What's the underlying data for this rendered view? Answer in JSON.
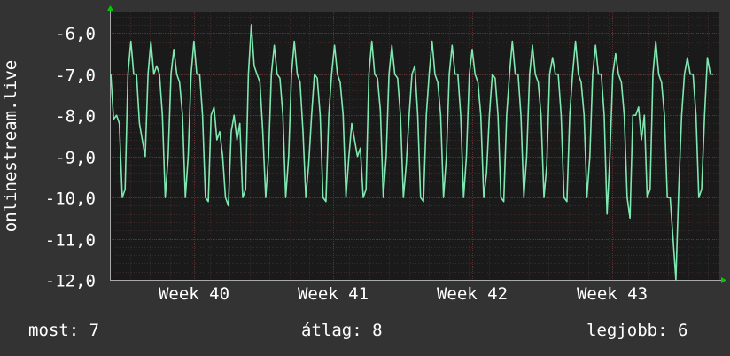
{
  "chart_data": {
    "type": "line",
    "ylabel": "onlinestream.live",
    "ylim": [
      -12,
      -5.5
    ],
    "yticks": [
      "-6,0",
      "-7,0",
      "-8,0",
      "-9,0",
      "-10,0",
      "-11,0",
      "-12,0"
    ],
    "ytick_values": [
      -6,
      -7,
      -8,
      -9,
      -10,
      -11,
      -12
    ],
    "xticks": [
      "Week 40",
      "Week 41",
      "Week 42",
      "Week 43"
    ],
    "grid": true,
    "series": [
      {
        "color": "#7ee8b0",
        "values": [
          -7.0,
          -8.1,
          -8.0,
          -8.2,
          -10.0,
          -9.8,
          -7.0,
          -6.2,
          -7.0,
          -7.0,
          -8.2,
          -8.6,
          -9.0,
          -7.0,
          -6.2,
          -7.0,
          -6.8,
          -7.0,
          -8.0,
          -10.0,
          -9.0,
          -7.0,
          -6.4,
          -7.0,
          -7.2,
          -8.0,
          -10.0,
          -9.0,
          -7.0,
          -6.2,
          -7.0,
          -7.0,
          -8.0,
          -10.0,
          -10.1,
          -8.0,
          -7.8,
          -8.6,
          -8.4,
          -9.0,
          -10.0,
          -10.2,
          -8.4,
          -8.0,
          -8.6,
          -8.2,
          -10.0,
          -9.8,
          -7.0,
          -5.8,
          -6.8,
          -7.0,
          -7.2,
          -8.4,
          -10.0,
          -9.0,
          -7.0,
          -6.3,
          -7.0,
          -7.1,
          -8.0,
          -10.0,
          -9.0,
          -7.0,
          -6.2,
          -7.0,
          -7.2,
          -8.4,
          -10.0,
          -9.2,
          -8.0,
          -7.0,
          -7.1,
          -8.0,
          -10.0,
          -10.1,
          -8.0,
          -7.0,
          -6.3,
          -7.0,
          -7.2,
          -8.0,
          -10.0,
          -9.0,
          -8.2,
          -8.6,
          -9.0,
          -8.8,
          -10.0,
          -9.8,
          -7.0,
          -6.2,
          -7.0,
          -7.1,
          -7.9,
          -10.0,
          -9.0,
          -7.0,
          -6.3,
          -7.0,
          -7.1,
          -8.0,
          -10.0,
          -9.2,
          -8.0,
          -7.0,
          -6.8,
          -8.0,
          -10.0,
          -10.1,
          -8.0,
          -7.0,
          -6.2,
          -7.0,
          -7.2,
          -8.0,
          -10.0,
          -9.0,
          -7.0,
          -6.3,
          -7.0,
          -7.0,
          -8.0,
          -10.0,
          -9.0,
          -7.0,
          -6.4,
          -7.0,
          -7.2,
          -8.0,
          -10.0,
          -9.4,
          -8.0,
          -7.0,
          -7.1,
          -8.0,
          -10.0,
          -10.1,
          -8.0,
          -7.0,
          -6.2,
          -7.0,
          -7.0,
          -8.0,
          -10.0,
          -9.0,
          -7.0,
          -6.3,
          -7.0,
          -7.2,
          -8.0,
          -10.0,
          -9.2,
          -7.0,
          -6.6,
          -7.0,
          -7.0,
          -8.0,
          -10.0,
          -10.1,
          -8.0,
          -7.0,
          -6.2,
          -7.0,
          -7.2,
          -8.0,
          -10.0,
          -9.0,
          -7.0,
          -6.3,
          -7.0,
          -7.0,
          -8.0,
          -10.4,
          -9.0,
          -7.0,
          -6.5,
          -7.0,
          -7.2,
          -8.0,
          -10.0,
          -10.5,
          -8.0,
          -8.0,
          -7.8,
          -8.6,
          -8.0,
          -10.0,
          -9.8,
          -7.0,
          -6.2,
          -7.0,
          -7.2,
          -8.0,
          -10.0,
          -10.0,
          -11.0,
          -12.0,
          -9.8,
          -8.0,
          -7.0,
          -6.6,
          -7.0,
          -7.0,
          -8.0,
          -10.0,
          -9.8,
          -8.0,
          -6.6,
          -7.0,
          -7.0
        ]
      }
    ]
  },
  "footer": {
    "current_label": "most:",
    "current_value": "7",
    "average_label": "átlag:",
    "average_value": "8",
    "best_label": "legjobb:",
    "best_value": "6"
  },
  "colors": {
    "background": "#333333",
    "plot_background": "#1a1a1a",
    "grid_major": "#5a3030",
    "grid_minor": "#3c2a2a",
    "line": "#7ee8b0",
    "arrow": "#00cc00"
  }
}
